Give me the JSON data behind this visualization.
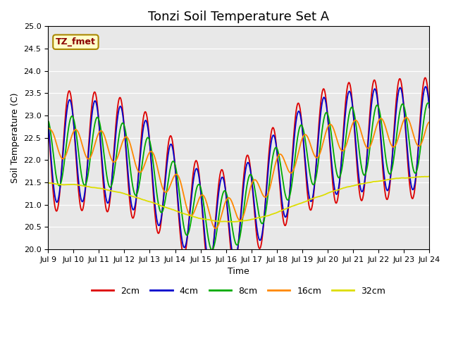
{
  "title": "Tonzi Soil Temperature Set A",
  "xlabel": "Time",
  "ylabel": "Soil Temperature (C)",
  "annotation": "TZ_fmet",
  "ylim": [
    20.0,
    25.0
  ],
  "yticks": [
    20.0,
    20.5,
    21.0,
    21.5,
    22.0,
    22.5,
    23.0,
    23.5,
    24.0,
    24.5,
    25.0
  ],
  "xtick_labels": [
    "Jul 9",
    "Jul 10",
    "Jul 11",
    "Jul 12",
    "Jul 13",
    "Jul 14",
    "Jul 15",
    "Jul 16",
    "Jul 17",
    "Jul 18",
    "Jul 19",
    "Jul 20",
    "Jul 21",
    "Jul 22",
    "Jul 23",
    "Jul 24"
  ],
  "series_labels": [
    "2cm",
    "4cm",
    "8cm",
    "16cm",
    "32cm"
  ],
  "series_colors": [
    "#dd0000",
    "#0000cc",
    "#00aa00",
    "#ff8800",
    "#dddd00"
  ],
  "background_color": "#e8e8e8",
  "title_fontsize": 13,
  "axis_fontsize": 9,
  "tick_fontsize": 8,
  "legend_fontsize": 9
}
